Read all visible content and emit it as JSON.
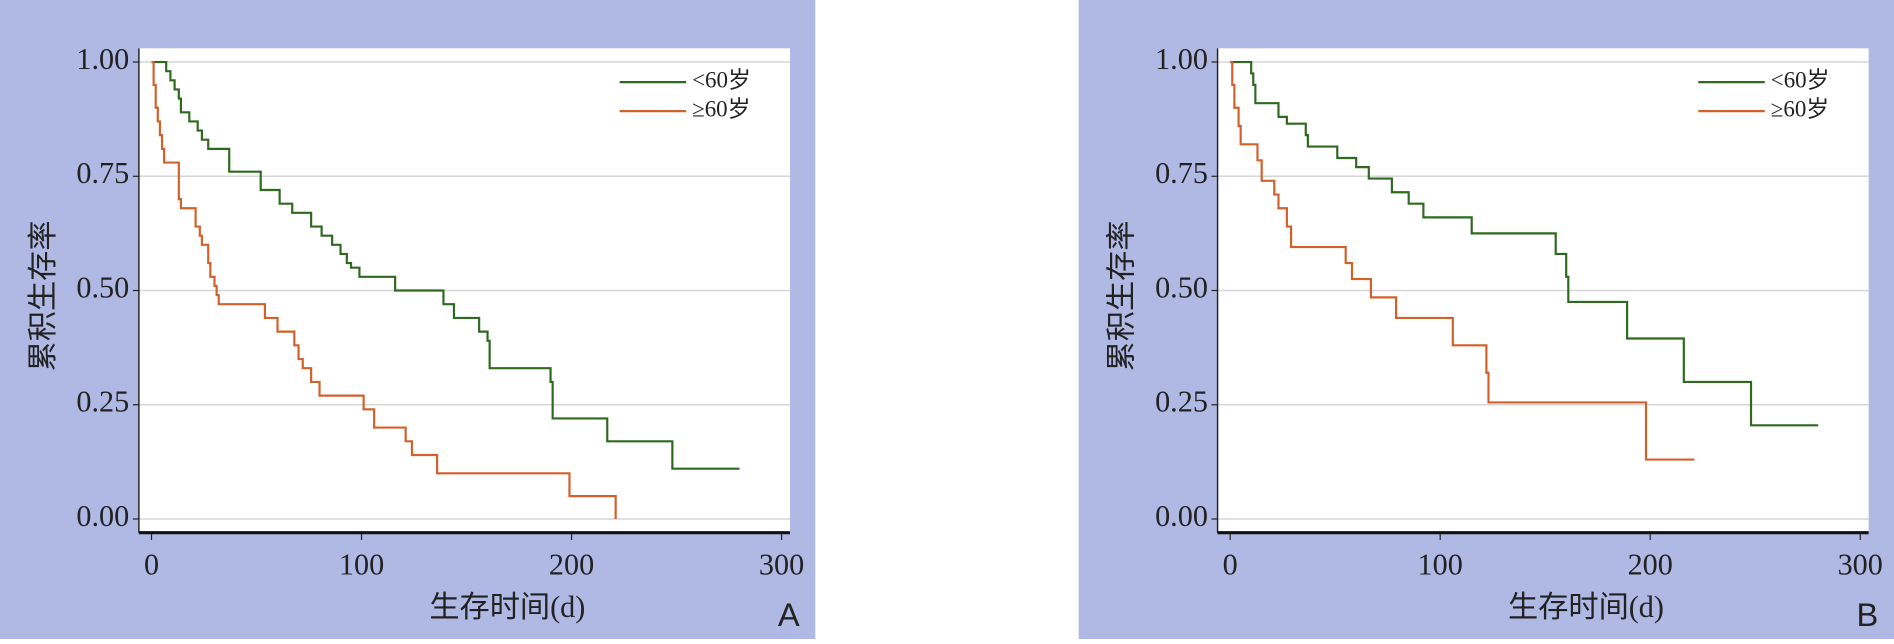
{
  "chart_data": [
    {
      "type": "step",
      "panel_label": "A",
      "y_label": "累积生存率",
      "x_label": "生存时间(d)",
      "xlim": [
        -6,
        304
      ],
      "ylim": [
        -0.03,
        1.03
      ],
      "xticks": [
        0,
        100,
        200,
        300
      ],
      "yticks": [
        {
          "value": 0,
          "label": "0.00"
        },
        {
          "value": 0.25,
          "label": "0.25"
        },
        {
          "value": 0.5,
          "label": "0.50"
        },
        {
          "value": 0.75,
          "label": "0.75"
        },
        {
          "value": 1,
          "label": "1.00"
        }
      ],
      "grid": true,
      "legend": "upper right",
      "series": [
        {
          "name": "<60岁",
          "color": "#2d6a1f",
          "x": [
            0,
            7,
            9,
            11,
            13,
            14,
            18,
            22,
            24,
            27,
            37,
            52,
            61,
            67,
            76,
            81,
            86,
            90,
            93,
            95,
            99,
            116,
            139,
            144,
            156,
            160,
            161,
            190,
            191,
            217,
            248,
            280
          ],
          "values": [
            1,
            0.98,
            0.96,
            0.94,
            0.92,
            0.89,
            0.87,
            0.85,
            0.83,
            0.81,
            0.76,
            0.72,
            0.69,
            0.67,
            0.64,
            0.62,
            0.6,
            0.58,
            0.56,
            0.55,
            0.53,
            0.5,
            0.47,
            0.44,
            0.41,
            0.39,
            0.33,
            0.3,
            0.22,
            0.17,
            0.11,
            0.11
          ]
        },
        {
          "name": "≥60岁",
          "color": "#d2602a",
          "x": [
            0,
            1,
            2,
            3,
            4,
            5,
            6,
            13,
            14,
            21,
            23,
            24,
            27,
            28,
            30,
            31,
            32,
            54,
            60,
            68,
            70,
            72,
            76,
            80,
            101,
            106,
            121,
            124,
            136,
            199,
            221
          ],
          "values": [
            1,
            0.95,
            0.9,
            0.87,
            0.84,
            0.81,
            0.78,
            0.7,
            0.68,
            0.64,
            0.62,
            0.6,
            0.56,
            0.53,
            0.51,
            0.49,
            0.47,
            0.44,
            0.41,
            0.38,
            0.35,
            0.33,
            0.3,
            0.27,
            0.24,
            0.2,
            0.17,
            0.14,
            0.1,
            0.05,
            0
          ]
        }
      ]
    },
    {
      "type": "step",
      "panel_label": "B",
      "y_label": "累积生存率",
      "x_label": "生存时间(d)",
      "xlim": [
        -6,
        304
      ],
      "ylim": [
        -0.03,
        1.03
      ],
      "xticks": [
        0,
        100,
        200,
        300
      ],
      "yticks": [
        {
          "value": 0,
          "label": "0.00"
        },
        {
          "value": 0.25,
          "label": "0.25"
        },
        {
          "value": 0.5,
          "label": "0.50"
        },
        {
          "value": 0.75,
          "label": "0.75"
        },
        {
          "value": 1,
          "label": "1.00"
        }
      ],
      "grid": true,
      "legend": "upper right",
      "series": [
        {
          "name": "<60岁",
          "color": "#2d6a1f",
          "x": [
            0,
            10,
            11,
            12,
            23,
            27,
            36,
            37,
            51,
            60,
            66,
            77,
            85,
            92,
            115,
            155,
            160,
            161,
            189,
            216,
            248,
            280
          ],
          "values": [
            1,
            0.975,
            0.95,
            0.91,
            0.88,
            0.865,
            0.84,
            0.815,
            0.79,
            0.77,
            0.745,
            0.715,
            0.69,
            0.66,
            0.625,
            0.58,
            0.53,
            0.475,
            0.395,
            0.3,
            0.205,
            0.205
          ]
        },
        {
          "name": "≥60岁",
          "color": "#d2602a",
          "x": [
            0,
            1,
            2,
            4,
            5,
            13,
            15,
            21,
            23,
            27,
            29,
            55,
            58,
            67,
            79,
            106,
            122,
            123,
            198,
            221
          ],
          "values": [
            1,
            0.95,
            0.9,
            0.86,
            0.82,
            0.785,
            0.74,
            0.71,
            0.68,
            0.64,
            0.595,
            0.56,
            0.525,
            0.485,
            0.44,
            0.38,
            0.32,
            0.255,
            0.13,
            0.13
          ]
        }
      ]
    }
  ]
}
